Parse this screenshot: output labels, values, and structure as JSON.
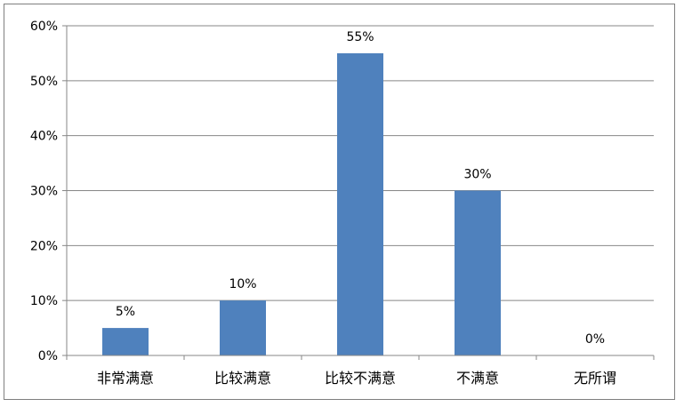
{
  "chart_data": {
    "type": "bar",
    "categories": [
      "非常满意",
      "比较满意",
      "比较不满意",
      "不满意",
      "无所谓"
    ],
    "values": [
      5,
      10,
      55,
      30,
      0
    ],
    "data_labels": [
      "5%",
      "10%",
      "55%",
      "30%",
      "0%"
    ],
    "title": "",
    "xlabel": "",
    "ylabel": "",
    "ylim": [
      0,
      60
    ],
    "y_ticks": [
      0,
      10,
      20,
      30,
      40,
      50,
      60
    ],
    "y_tick_labels": [
      "0%",
      "10%",
      "20%",
      "30%",
      "40%",
      "50%",
      "60%"
    ],
    "grid": true,
    "legend": "none",
    "bar_color": "#4f81bd",
    "grid_color": "#878787"
  }
}
